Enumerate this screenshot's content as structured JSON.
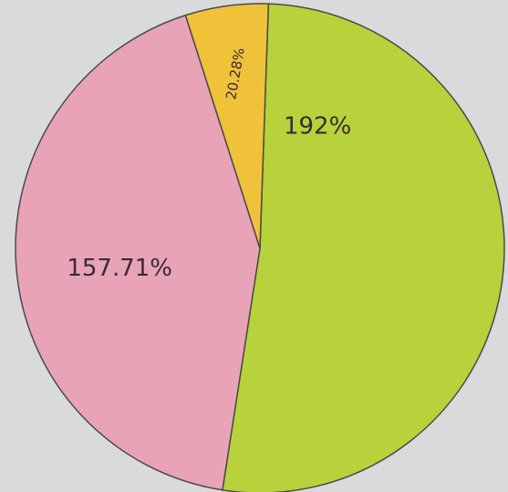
{
  "chart_data": {
    "type": "pie",
    "values": [
      192,
      157.71,
      20.28
    ],
    "value_labels": [
      "192%",
      "157.71%",
      "20.28%"
    ],
    "colors": [
      "#b7d23a",
      "#e8a3b6",
      "#efc23a"
    ]
  }
}
